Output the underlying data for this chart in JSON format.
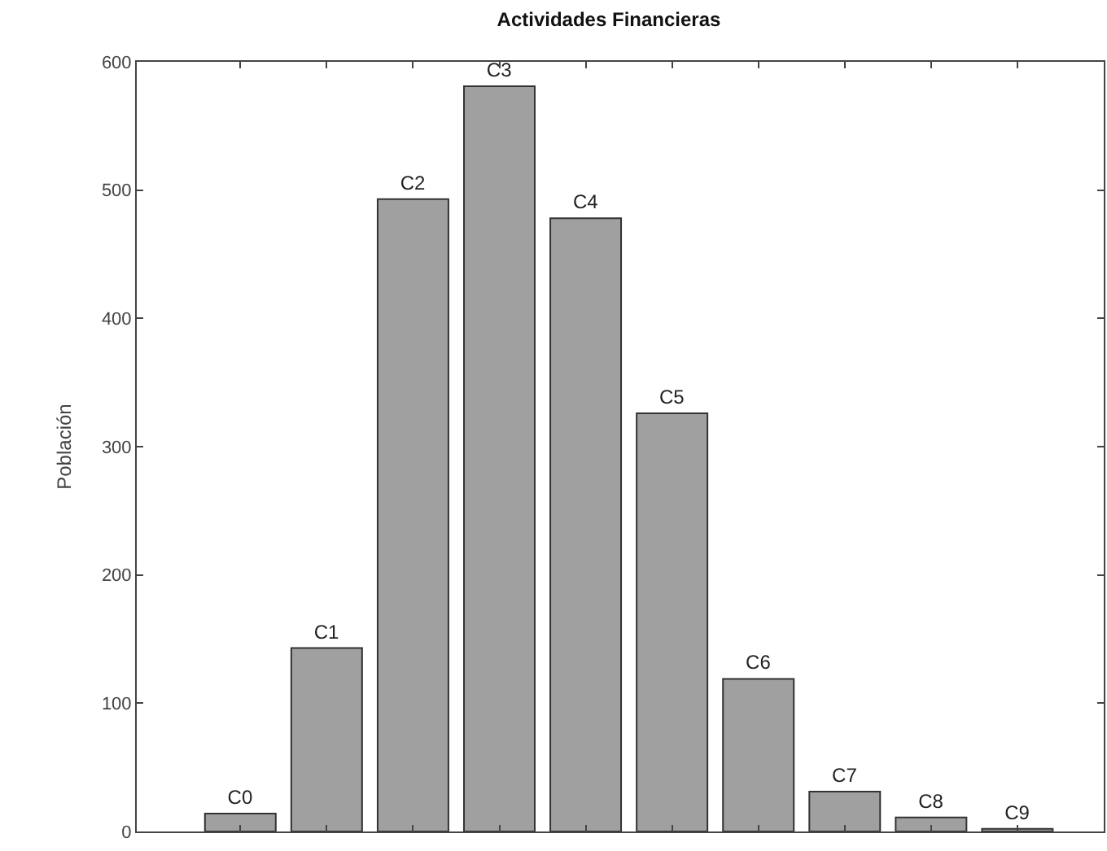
{
  "chart_data": {
    "type": "bar",
    "title": "Actividades Financieras",
    "ylabel": "Población",
    "categories": [
      "C0",
      "C1",
      "C2",
      "C3",
      "C4",
      "C5",
      "C6",
      "C7",
      "C8",
      "C9"
    ],
    "values": [
      14,
      143,
      493,
      581,
      478,
      326,
      119,
      31,
      11,
      2
    ],
    "color": "#a0a0a0",
    "ylim": [
      0,
      600
    ],
    "yticks": [
      0,
      100,
      200,
      300,
      400,
      500,
      600
    ],
    "tick_labels": "y"
  }
}
